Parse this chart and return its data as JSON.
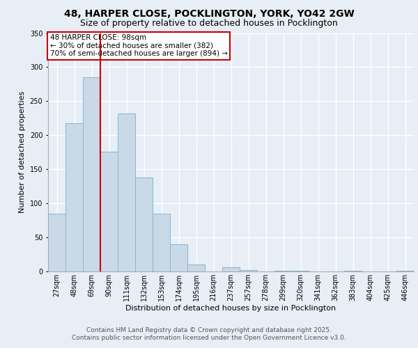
{
  "title_line1": "48, HARPER CLOSE, POCKLINGTON, YORK, YO42 2GW",
  "title_line2": "Size of property relative to detached houses in Pocklington",
  "xlabel": "Distribution of detached houses by size in Pocklington",
  "ylabel": "Number of detached properties",
  "bar_color": "#c9d9e8",
  "bar_edge_color": "#8ab4cc",
  "background_color": "#e8eef5",
  "plot_bg_color": "#e8eef5",
  "grid_color": "#ffffff",
  "vline_color": "#cc0000",
  "vline_x_index": 3,
  "annotation_text": "48 HARPER CLOSE: 98sqm\n← 30% of detached houses are smaller (382)\n70% of semi-detached houses are larger (894) →",
  "annotation_box_color": "#ffffff",
  "annotation_box_edge": "#cc0000",
  "categories": [
    "27sqm",
    "48sqm",
    "69sqm",
    "90sqm",
    "111sqm",
    "132sqm",
    "153sqm",
    "174sqm",
    "195sqm",
    "216sqm",
    "237sqm",
    "257sqm",
    "278sqm",
    "299sqm",
    "320sqm",
    "341sqm",
    "362sqm",
    "383sqm",
    "404sqm",
    "425sqm",
    "446sqm"
  ],
  "values": [
    85,
    218,
    285,
    176,
    232,
    138,
    85,
    40,
    10,
    0,
    6,
    2,
    0,
    1,
    1,
    0,
    0,
    1,
    0,
    0,
    1
  ],
  "ylim": [
    0,
    350
  ],
  "yticks": [
    0,
    50,
    100,
    150,
    200,
    250,
    300,
    350
  ],
  "footer_line1": "Contains HM Land Registry data © Crown copyright and database right 2025.",
  "footer_line2": "Contains public sector information licensed under the Open Government Licence v3.0.",
  "title_fontsize": 10,
  "subtitle_fontsize": 9,
  "axis_label_fontsize": 8,
  "tick_fontsize": 7,
  "annotation_fontsize": 7.5,
  "footer_fontsize": 6.5
}
